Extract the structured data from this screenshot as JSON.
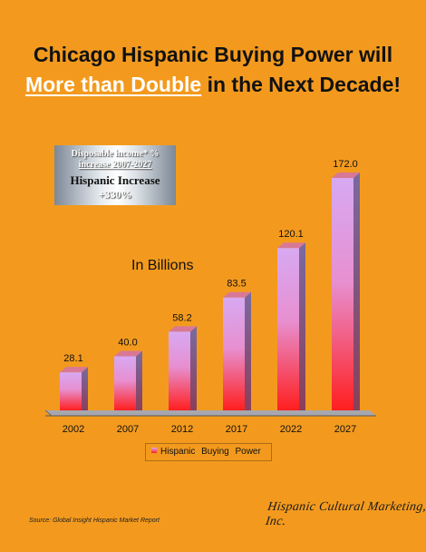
{
  "title": {
    "line1": "Chicago Hispanic Buying Power will",
    "line2_highlight": "More than Double",
    "line2_rest": " in the Next Decade!"
  },
  "info_box": {
    "line1": "Disposable income* %",
    "line2": "increase 2007-2027",
    "line3": "Hispanic Increase",
    "line4": "+330%"
  },
  "unit_label": "In Billions",
  "chart_data": {
    "type": "bar",
    "categories": [
      "2002",
      "2007",
      "2012",
      "2017",
      "2022",
      "2027"
    ],
    "series": [
      {
        "name": "Hispanic   Buying   Power",
        "values": [
          28.1,
          40.0,
          58.2,
          83.5,
          120.1,
          172.0
        ]
      }
    ],
    "value_labels": [
      "28.1",
      "40.0",
      "58.2",
      "83.5",
      "120.1",
      "172.0"
    ],
    "ylim": [
      0,
      172
    ],
    "grid": false,
    "legend_position": "bottom",
    "colors": {
      "bar_top": "#d7a9f2",
      "bar_bottom": "#ff1f1f",
      "bar_side": "#6a5c8c",
      "bar_cap": "#d87896",
      "floor": "#9a9aa0"
    }
  },
  "source": "Source: Global Insight Hispanic Market Report",
  "brand": "Hispanic Cultural Marketing, Inc."
}
